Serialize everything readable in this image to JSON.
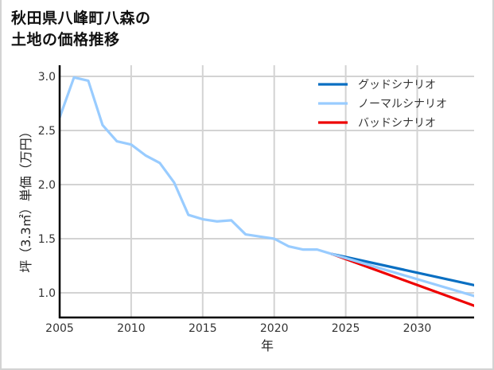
{
  "title_line1": "秋田県八峰町八森の",
  "title_line2": "土地の価格推移",
  "chart_data": {
    "type": "line",
    "title": "秋田県八峰町八森の土地の価格推移",
    "xlabel": "年",
    "ylabel": "坪（3.3㎡）単価（万円）",
    "xlim": [
      2005,
      2034
    ],
    "ylim": [
      0.76,
      3.08
    ],
    "xticks": [
      "2005",
      "2010",
      "2015",
      "2020",
      "2025",
      "2030"
    ],
    "yticks": [
      "3.0",
      "2.5",
      "2.0",
      "1.5",
      "1.0"
    ],
    "grid": true,
    "legend_position": "upper right",
    "history": {
      "x": [
        2005,
        2006,
        2007,
        2008,
        2009,
        2010,
        2011,
        2012,
        2013,
        2014,
        2015,
        2016,
        2017,
        2018,
        2019,
        2020,
        2021,
        2022,
        2023,
        2024
      ],
      "values": [
        2.62,
        2.99,
        2.96,
        2.55,
        2.4,
        2.37,
        2.27,
        2.2,
        2.02,
        1.72,
        1.68,
        1.66,
        1.67,
        1.54,
        1.52,
        1.5,
        1.43,
        1.4,
        1.4,
        1.36
      ]
    },
    "series": [
      {
        "name": "グッドシナリオ",
        "color": "#0a6fc2",
        "x": [
          2024,
          2034
        ],
        "values": [
          1.36,
          1.07
        ]
      },
      {
        "name": "ノーマルシナリオ",
        "color": "#99ccff",
        "x": [
          2024,
          2034
        ],
        "values": [
          1.36,
          0.97
        ]
      },
      {
        "name": "バッドシナリオ",
        "color": "#ee0000",
        "x": [
          2024,
          2034
        ],
        "values": [
          1.36,
          0.88
        ]
      }
    ]
  }
}
